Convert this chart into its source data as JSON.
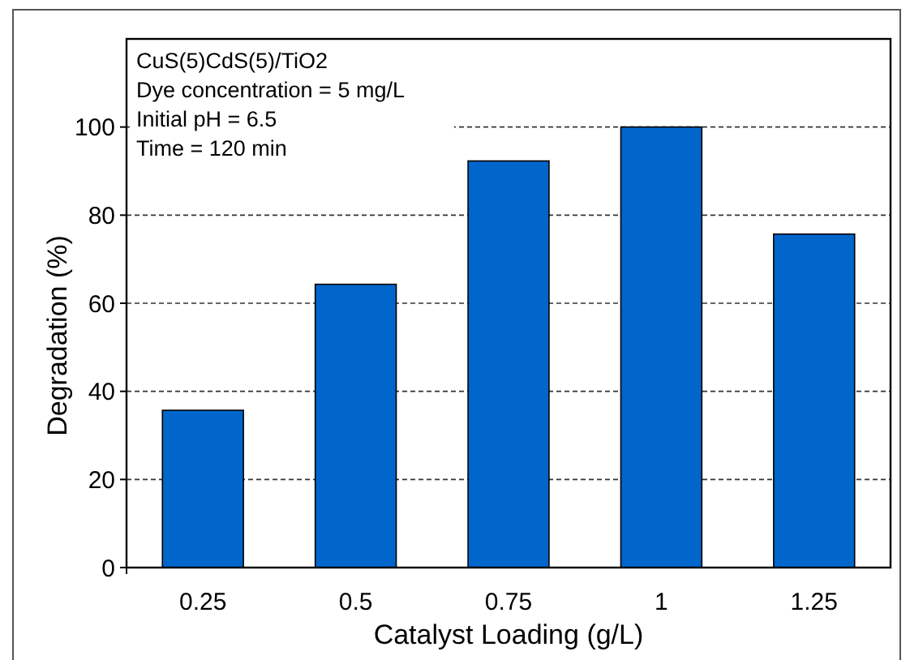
{
  "chart_data": {
    "type": "bar",
    "xlabel": "Catalyst Loading (g/L)",
    "ylabel": "Degradation (%)",
    "categories": [
      "0.25",
      "0.5",
      "0.75",
      "1",
      "1.25"
    ],
    "values": [
      35.7,
      64.3,
      92.3,
      100,
      75.7
    ],
    "color": "#0066cc",
    "ylim": [
      0,
      120
    ],
    "yticks": [
      0,
      20,
      40,
      60,
      80,
      100
    ],
    "grid": "y",
    "annotations": [
      "CuS(5)CdS(5)/TiO2",
      "Dye concentration = 5 mg/L",
      "Initial pH = 6.5",
      "Time = 120 min"
    ]
  }
}
